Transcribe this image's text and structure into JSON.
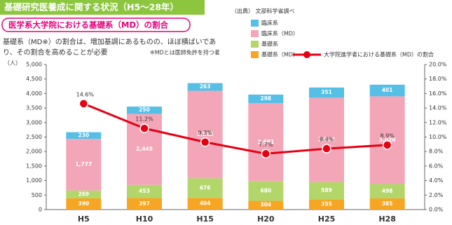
{
  "chart_data": {
    "type": "bar",
    "title": "基礎研究医養成に関する状況（H5～28年）",
    "subtitle": "医学系大学院における基礎系（MD）の割合",
    "source": "（出典） 文部科学省調べ",
    "description": [
      "基礎系（MD※）の割合は、増加基調にあるものの、ほぼ横ばいであ",
      "り、その割合を高めることが必要"
    ],
    "note": "※MDとは医師免許を持つ者",
    "y_label": "（人）",
    "stacked": true,
    "categories": [
      "H5",
      "H10",
      "H15",
      "H20",
      "H25",
      "H28"
    ],
    "series": [
      {
        "name": "基礎系（MD）",
        "color": "#f6a623",
        "values": [
          390,
          397,
          404,
          304,
          355,
          385
        ]
      },
      {
        "name": "基礎系",
        "color": "#b3d66a",
        "values": [
          269,
          453,
          676,
          680,
          589,
          498
        ]
      },
      {
        "name": "臨床系（MD）",
        "color": "#f3a6b8",
        "values": [
          1777,
          2449,
          3015,
          2681,
          2912,
          3020
        ],
        "value_labels": [
          "1,777",
          "2,449",
          "3,015",
          "2,681",
          "2,912",
          "3,020"
        ]
      },
      {
        "name": "臨床系",
        "color": "#55bfe6",
        "values": [
          230,
          250,
          263,
          298,
          351,
          401
        ]
      },
      {
        "name": "大学院進学者における基礎系（MD）の割合",
        "type": "line",
        "axis": "y2",
        "color": "#e60012",
        "values": [
          14.6,
          11.2,
          9.3,
          7.7,
          8.4,
          8.9
        ],
        "value_labels": [
          "14.6%",
          "11.2%",
          "9.3%",
          "7.7%",
          "8.4%",
          "8.9%"
        ]
      }
    ],
    "ylim": [
      0,
      5000
    ],
    "yticks": [
      0,
      500,
      {
        "value": 1000,
        "label": "1,000"
      },
      {
        "value": 1500,
        "label": "1,500"
      },
      {
        "value": 2000,
        "label": "2,000"
      },
      {
        "value": 2500,
        "label": "2,500"
      },
      {
        "value": 3000,
        "label": "3,000"
      },
      {
        "value": 3500,
        "label": "3,500"
      },
      {
        "value": 4000,
        "label": "4,000"
      },
      {
        "value": 4500,
        "label": "4,500"
      },
      {
        "value": 5000,
        "label": "5,000"
      }
    ],
    "y2lim": [
      0,
      20
    ],
    "y2ticks": [
      {
        "value": 0,
        "label": "0.0%"
      },
      {
        "value": 2,
        "label": "2.0%"
      },
      {
        "value": 4,
        "label": "4.0%"
      },
      {
        "value": 6,
        "label": "6.0%"
      },
      {
        "value": 8,
        "label": "8.0%"
      },
      {
        "value": 10,
        "label": "10.0%"
      },
      {
        "value": 12,
        "label": "12.0%"
      },
      {
        "value": 14,
        "label": "14.0%"
      },
      {
        "value": 16,
        "label": "16.0%"
      },
      {
        "value": 18,
        "label": "18.0%"
      },
      {
        "value": 20,
        "label": "20.0%"
      }
    ]
  }
}
